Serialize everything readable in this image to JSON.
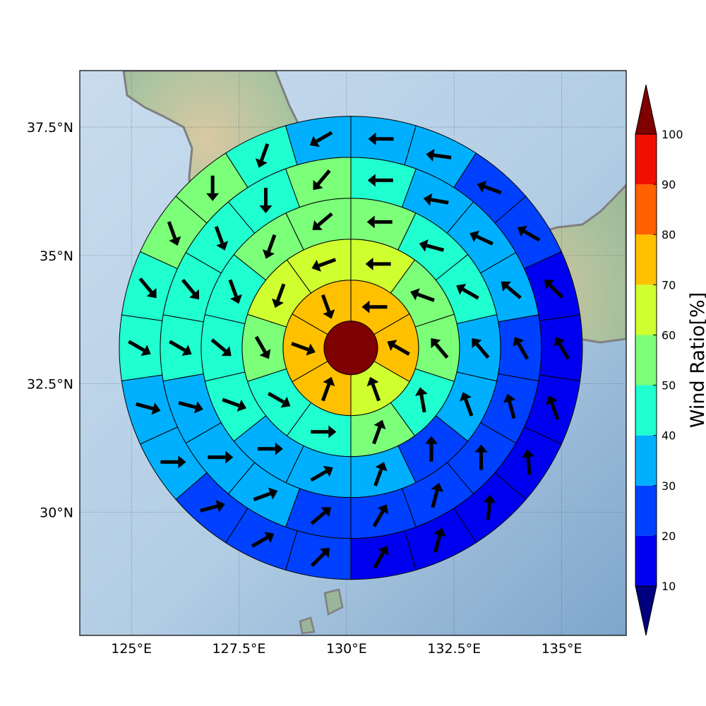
{
  "chart_data": {
    "type": "polar-sector-map",
    "projection": "lat-lon map with relief basemap",
    "center": {
      "lon": 130.1,
      "lat": 33.2
    },
    "xlim": [
      123.8,
      136.5
    ],
    "ylim": [
      27.6,
      38.6
    ],
    "x_ticks": [
      125,
      127.5,
      130,
      132.5,
      135
    ],
    "x_tick_labels": [
      "125°E",
      "127.5°E",
      "130°E",
      "132.5°E",
      "135°E"
    ],
    "y_ticks": [
      30,
      32.5,
      35,
      37.5
    ],
    "y_tick_labels": [
      "30°N",
      "32.5°N",
      "35°N",
      "37.5°N"
    ],
    "grid": true,
    "ring_count": 5,
    "sectors_per_ring": [
      6,
      10,
      14,
      18,
      22
    ],
    "center_value": 100,
    "center_arrow": false,
    "ring_values": [
      [
        70,
        70,
        60,
        70,
        70,
        70
      ],
      [
        60,
        50,
        50,
        40,
        50,
        40,
        40,
        50,
        60,
        60
      ],
      [
        50,
        40,
        40,
        30,
        30,
        20,
        30,
        30,
        30,
        40,
        40,
        40,
        50,
        50
      ],
      [
        40,
        30,
        30,
        30,
        20,
        20,
        20,
        20,
        20,
        20,
        30,
        30,
        30,
        40,
        40,
        40,
        40,
        50
      ],
      [
        30,
        30,
        20,
        20,
        10,
        10,
        10,
        10,
        10,
        10,
        10,
        20,
        20,
        20,
        30,
        30,
        40,
        40,
        50,
        50,
        40,
        30
      ]
    ],
    "wind_direction_deg": [
      [
        270,
        300,
        340,
        20,
        110,
        160
      ],
      [
        270,
        290,
        320,
        350,
        20,
        90,
        120,
        150,
        200,
        250
      ],
      [
        270,
        285,
        300,
        320,
        340,
        0,
        20,
        60,
        90,
        110,
        130,
        160,
        200,
        230
      ],
      [
        270,
        280,
        295,
        310,
        330,
        345,
        0,
        15,
        30,
        50,
        70,
        90,
        105,
        120,
        140,
        160,
        180,
        220
      ],
      [
        270,
        278,
        290,
        300,
        315,
        330,
        340,
        355,
        5,
        15,
        30,
        45,
        60,
        75,
        90,
        105,
        120,
        140,
        160,
        180,
        200,
        240
      ]
    ],
    "colorbar": {
      "label": "Wind Ratio[%]",
      "ticks": [
        10,
        20,
        30,
        40,
        50,
        60,
        70,
        80,
        90,
        100
      ],
      "levels": [
        0,
        10,
        20,
        30,
        40,
        50,
        60,
        70,
        80,
        90,
        100,
        110
      ],
      "colors": [
        "#00007f",
        "#0000f0",
        "#0040ff",
        "#00b0ff",
        "#20ffd0",
        "#7cff79",
        "#d0ff30",
        "#ffc000",
        "#ff6000",
        "#f01000",
        "#7f0000"
      ],
      "extend": "both"
    }
  }
}
